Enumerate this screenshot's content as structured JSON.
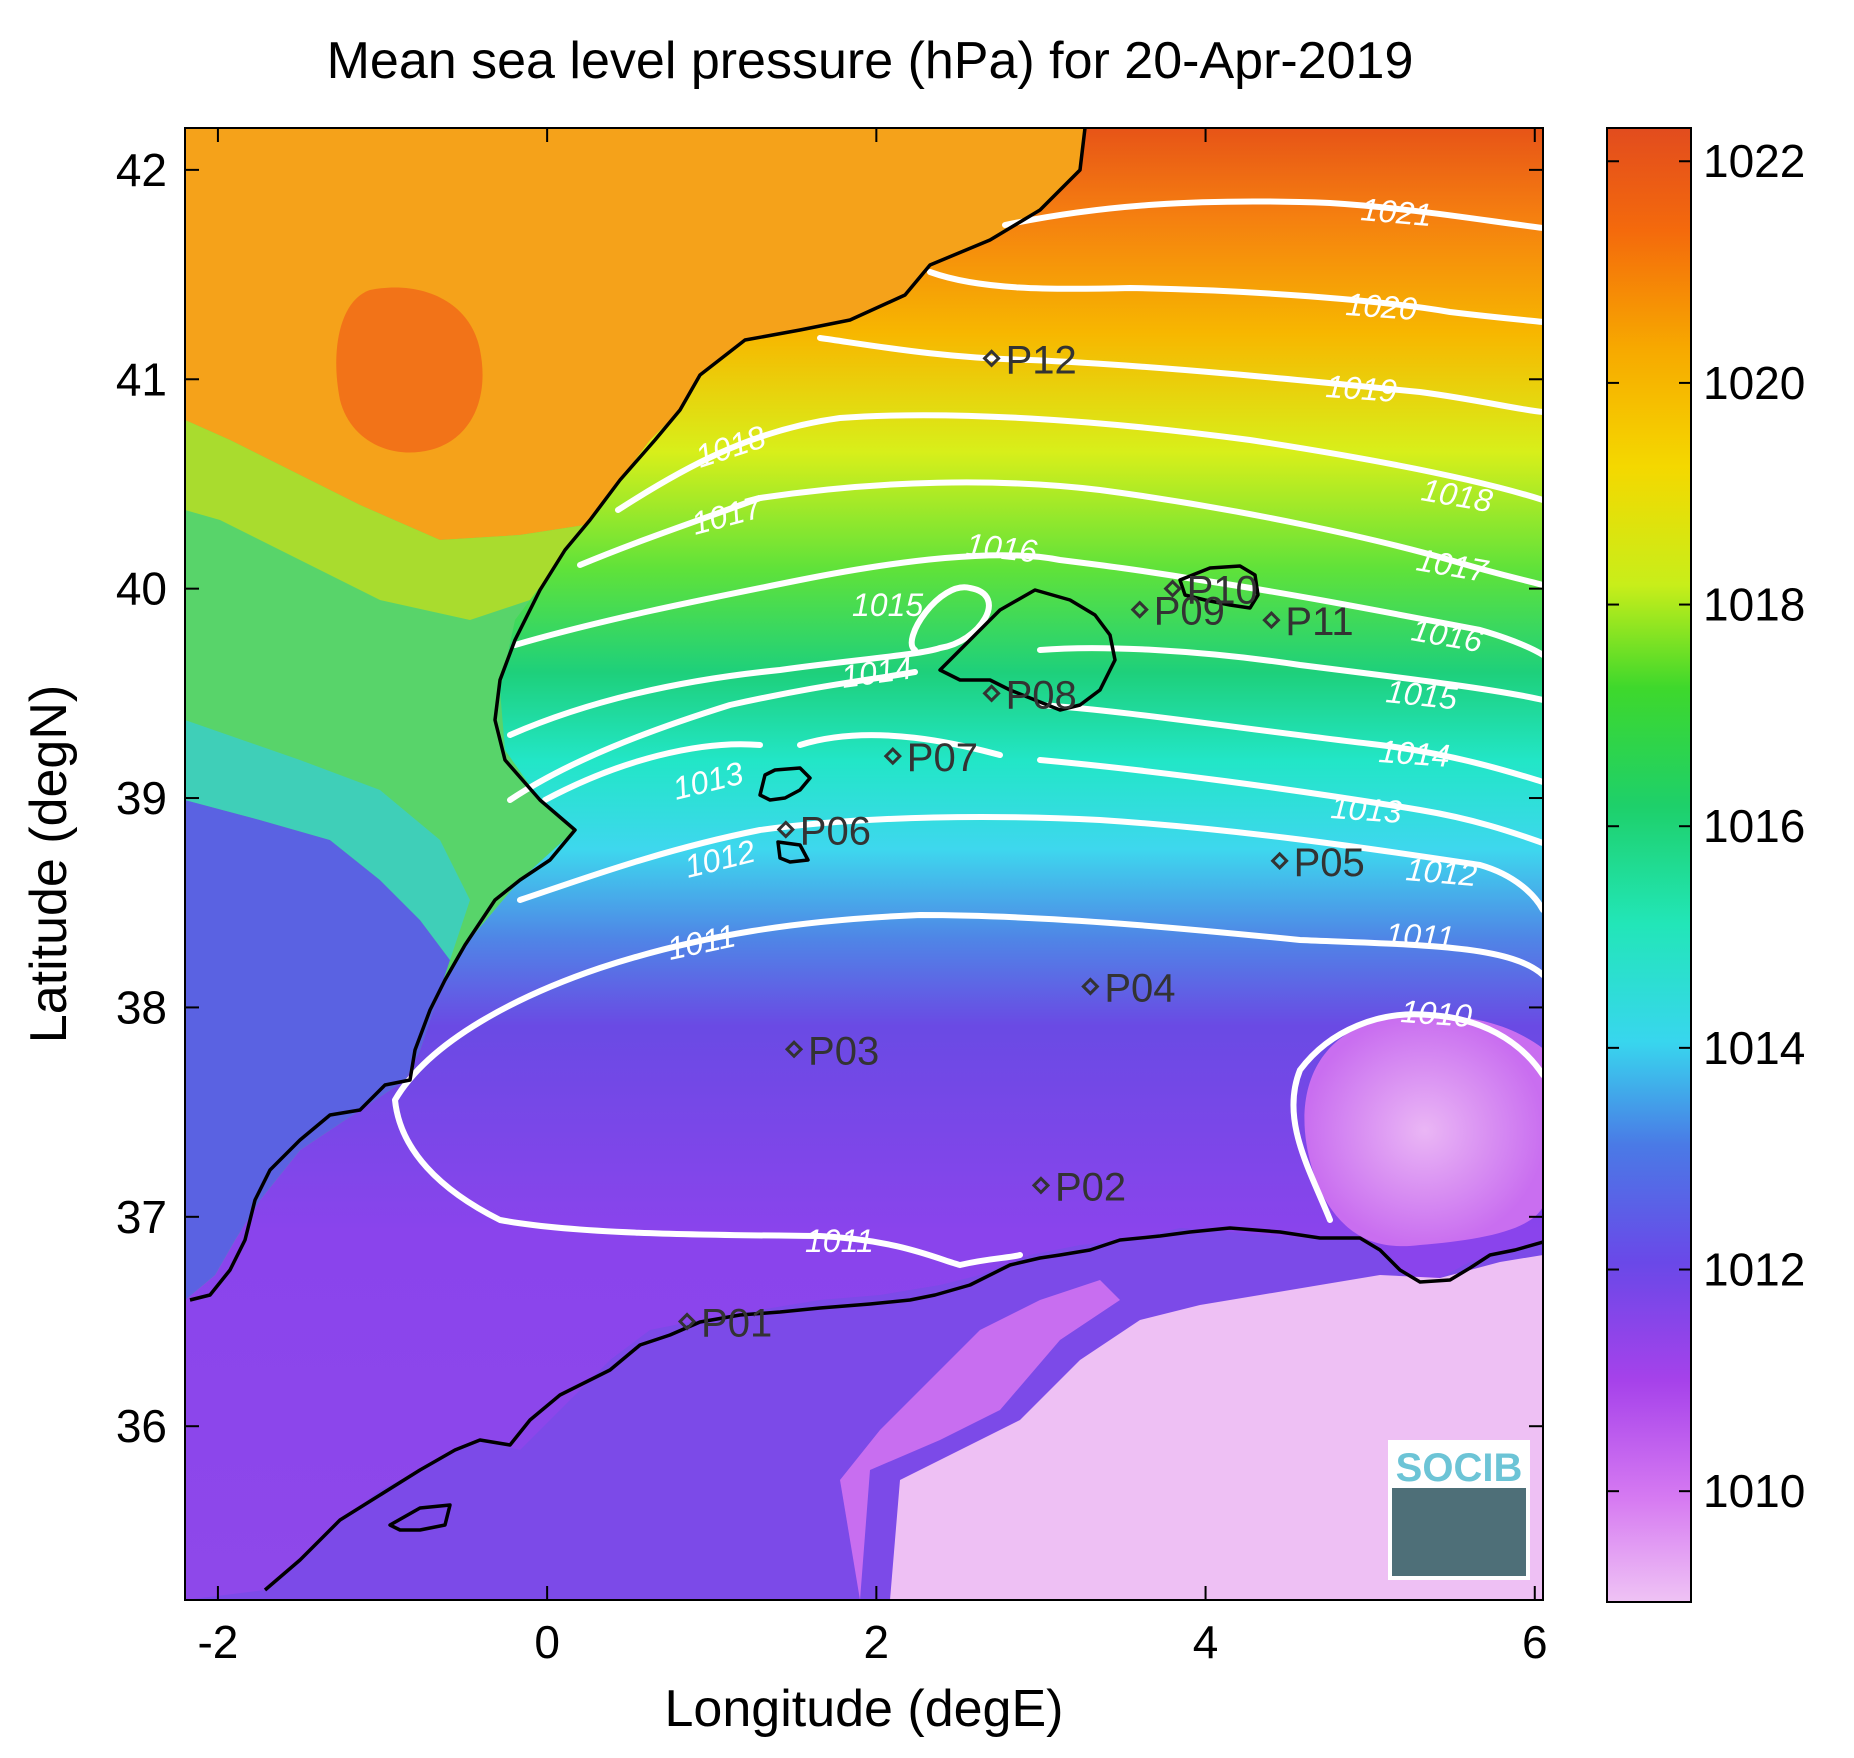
{
  "title": "Mean sea level pressure (hPa) for 20-Apr-2019",
  "xlabel": "Longitude (degE)",
  "ylabel": "Latitude (degN)",
  "xlim": [
    -2.2,
    6.05
  ],
  "ylim": [
    35.17,
    42.2
  ],
  "xticks": [
    -2,
    0,
    2,
    4,
    6
  ],
  "xtick_labels": [
    "-2",
    "0",
    "2",
    "4",
    "6"
  ],
  "yticks": [
    36,
    37,
    38,
    39,
    40,
    41,
    42
  ],
  "ytick_labels": [
    "36",
    "37",
    "38",
    "39",
    "40",
    "41",
    "42"
  ],
  "colorbar": {
    "range": [
      1009,
      1022.3
    ],
    "ticks": [
      1010,
      1012,
      1014,
      1016,
      1018,
      1020,
      1022
    ],
    "tick_labels": [
      "1010",
      "1012",
      "1014",
      "1016",
      "1018",
      "1020",
      "1022"
    ]
  },
  "contour_labels": [
    "1021",
    "1020",
    "1019",
    "1018",
    "1018",
    "1017",
    "1017",
    "1016",
    "1016",
    "1015",
    "1015",
    "1014",
    "1014",
    "1013",
    "1013",
    "1012",
    "1012",
    "1011",
    "1011",
    "1011",
    "1010"
  ],
  "stations": [
    {
      "id": "P01",
      "lon": 0.85,
      "lat": 36.5
    },
    {
      "id": "P02",
      "lon": 3.0,
      "lat": 37.15
    },
    {
      "id": "P03",
      "lon": 1.5,
      "lat": 37.8
    },
    {
      "id": "P04",
      "lon": 3.3,
      "lat": 38.1
    },
    {
      "id": "P05",
      "lon": 4.45,
      "lat": 38.7
    },
    {
      "id": "P06",
      "lon": 1.45,
      "lat": 38.85
    },
    {
      "id": "P07",
      "lon": 2.1,
      "lat": 39.2
    },
    {
      "id": "P08",
      "lon": 2.7,
      "lat": 39.5
    },
    {
      "id": "P09",
      "lon": 3.6,
      "lat": 39.9
    },
    {
      "id": "P10",
      "lon": 3.8,
      "lat": 40.0
    },
    {
      "id": "P11",
      "lon": 4.4,
      "lat": 39.85
    },
    {
      "id": "P12",
      "lon": 2.7,
      "lat": 41.1
    }
  ],
  "logo": "SOCIB",
  "colors": {
    "contour": "#ffffff",
    "coast": "#000000",
    "station": "#333333"
  }
}
